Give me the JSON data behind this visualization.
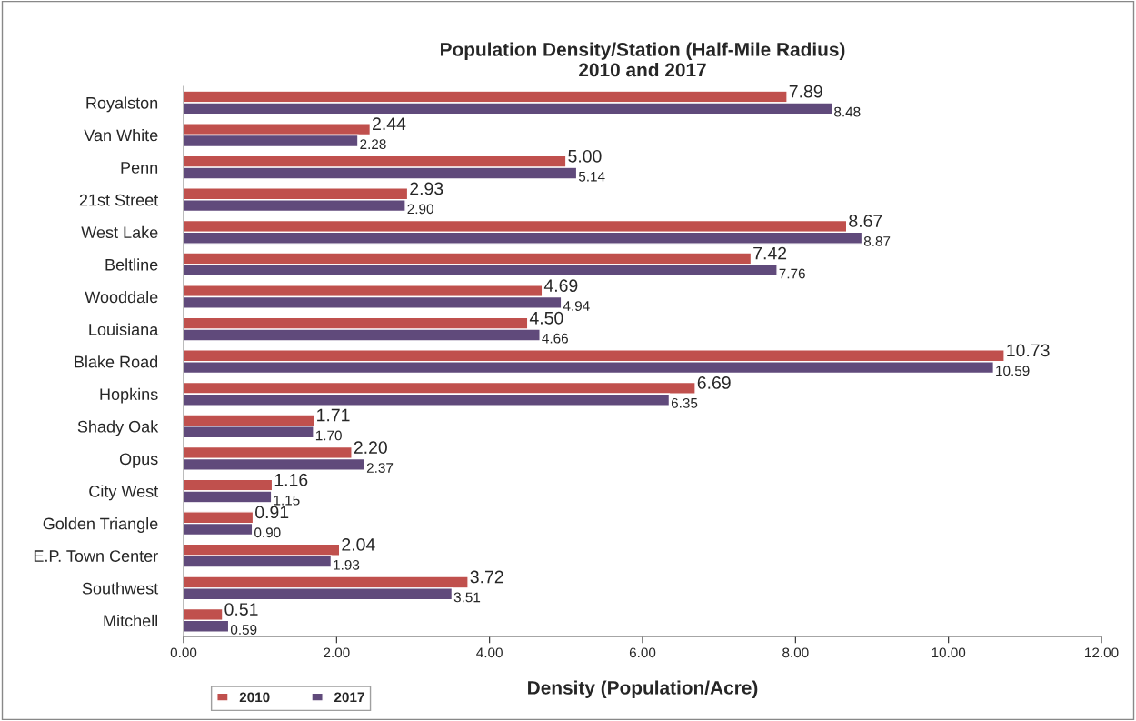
{
  "chart_data": {
    "type": "bar",
    "orientation": "horizontal",
    "title": "Population Density/Station (Half-Mile Radius)\n2010 and 2017",
    "xlabel": "Density (Population/Acre)",
    "categories": [
      "Royalston",
      "Van White",
      "Penn",
      "21st Street",
      "West Lake",
      "Beltline",
      "Wooddale",
      "Louisiana",
      "Blake Road",
      "Hopkins",
      "Shady Oak",
      "Opus",
      "City West",
      "Golden Triangle",
      "E.P. Town Center",
      "Southwest",
      "Mitchell"
    ],
    "series": [
      {
        "name": "2010",
        "color": "#c0504d",
        "values": [
          7.89,
          2.44,
          5.0,
          2.93,
          8.67,
          7.42,
          4.69,
          4.5,
          10.73,
          6.69,
          1.71,
          2.2,
          1.16,
          0.91,
          2.04,
          3.72,
          0.51
        ],
        "value_labels": [
          "7.89",
          "2.44",
          "5.00",
          "2.93",
          "8.67",
          "7.42",
          "4.69",
          "4.50",
          "10.73",
          "6.69",
          "1.71",
          "2.20",
          "1.16",
          "0.91",
          "2.04",
          "3.72",
          "0.51"
        ]
      },
      {
        "name": "2017",
        "color": "#604a7b",
        "values": [
          8.48,
          2.28,
          5.14,
          2.9,
          8.87,
          7.76,
          4.94,
          4.66,
          10.59,
          6.35,
          1.7,
          2.37,
          1.15,
          0.9,
          1.93,
          3.51,
          0.59
        ],
        "value_labels": [
          "8.48",
          "2.28",
          "5.14",
          "2.90",
          "8.87",
          "7.76",
          "4.94",
          "4.66",
          "10.59",
          "6.35",
          "1.70",
          "2.37",
          "1.15",
          "0.90",
          "1.93",
          "3.51",
          "0.59"
        ]
      }
    ],
    "xlim": [
      0,
      12
    ],
    "xticks": [
      {
        "value": 0,
        "label": "0.00"
      },
      {
        "value": 2,
        "label": "2.00"
      },
      {
        "value": 4,
        "label": "4.00"
      },
      {
        "value": 6,
        "label": "6.00"
      },
      {
        "value": 8,
        "label": "8.00"
      },
      {
        "value": 10,
        "label": "10.00"
      },
      {
        "value": 12,
        "label": "12.00"
      }
    ],
    "grid": false,
    "legend": "bottom left"
  }
}
